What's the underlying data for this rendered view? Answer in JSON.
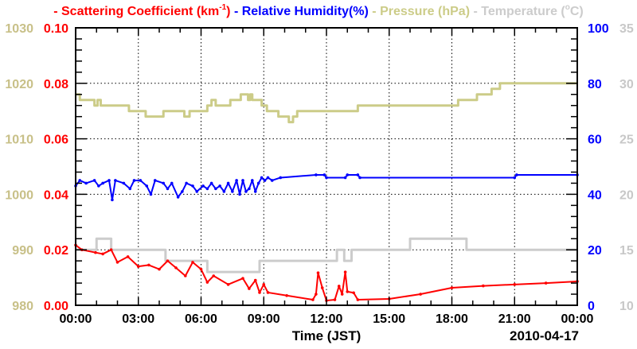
{
  "chart_data": {
    "type": "line",
    "title_parts": [
      {
        "dash": "-",
        "text": "Scattering Coefficient (km",
        "sup": "-1",
        "tail": ")",
        "color": "#ff0000"
      },
      {
        "dash": "-",
        "text": "Relative Humidity(%)",
        "color": "#0000ff"
      },
      {
        "dash": "-",
        "text": "Pressure (hPa)",
        "color": "#cccc88"
      },
      {
        "dash": "-",
        "text": "Temperature (",
        "sup": "o",
        "tail": "C)",
        "color": "#cccccc"
      }
    ],
    "xlabel": "Time (JST)",
    "date_label": "2010-04-17",
    "x_range_hours": [
      0,
      24
    ],
    "x_ticks": [
      "00:00",
      "03:00",
      "06:00",
      "09:00",
      "12:00",
      "15:00",
      "18:00",
      "21:00",
      "00:00"
    ],
    "grid": true,
    "axes": {
      "pressure": {
        "range": [
          980,
          1030
        ],
        "ticks": [
          "980",
          "990",
          "1000",
          "1010",
          "1020",
          "1030"
        ],
        "color": "#c8c088"
      },
      "scattering": {
        "range": [
          0,
          0.1
        ],
        "ticks": [
          "0.00",
          "0.02",
          "0.04",
          "0.06",
          "0.08",
          "0.10"
        ],
        "color": "#ff0000"
      },
      "humidity": {
        "range": [
          0,
          100
        ],
        "ticks": [
          "0",
          "20",
          "40",
          "60",
          "80",
          "100"
        ],
        "color": "#0000ff"
      },
      "temperature": {
        "range": [
          10,
          35
        ],
        "ticks": [
          "10",
          "15",
          "20",
          "25",
          "30",
          "35"
        ],
        "color": "#c8c8c8"
      }
    },
    "series": [
      {
        "name": "Pressure",
        "axis": "pressure",
        "color": "#cccc88",
        "step": true,
        "points": [
          [
            0,
            1018
          ],
          [
            0.2,
            1017
          ],
          [
            0.9,
            1016
          ],
          [
            1.05,
            1017
          ],
          [
            1.2,
            1016
          ],
          [
            2.55,
            1015
          ],
          [
            3.35,
            1014
          ],
          [
            4.2,
            1015
          ],
          [
            5.2,
            1014
          ],
          [
            5.45,
            1015
          ],
          [
            6.3,
            1016
          ],
          [
            6.5,
            1017
          ],
          [
            6.7,
            1016
          ],
          [
            7.4,
            1017
          ],
          [
            7.9,
            1018
          ],
          [
            8.25,
            1017
          ],
          [
            8.35,
            1018
          ],
          [
            8.45,
            1017
          ],
          [
            8.9,
            1016
          ],
          [
            9.15,
            1015
          ],
          [
            9.7,
            1014
          ],
          [
            10.2,
            1013
          ],
          [
            10.4,
            1014
          ],
          [
            10.6,
            1015
          ],
          [
            13.5,
            1016
          ],
          [
            18.3,
            1017
          ],
          [
            19.2,
            1018
          ],
          [
            19.9,
            1019
          ],
          [
            20.3,
            1020
          ],
          [
            24,
            1020
          ]
        ]
      },
      {
        "name": "Temperature",
        "axis": "temperature",
        "color": "#cccccc",
        "step": true,
        "points": [
          [
            0,
            15
          ],
          [
            1,
            16
          ],
          [
            1.7,
            15
          ],
          [
            4.3,
            14
          ],
          [
            6.3,
            13
          ],
          [
            8.8,
            14
          ],
          [
            12.5,
            15
          ],
          [
            12.85,
            14
          ],
          [
            13.2,
            15
          ],
          [
            16,
            16
          ],
          [
            18.7,
            15
          ],
          [
            24,
            15
          ]
        ]
      },
      {
        "name": "Relative Humidity",
        "axis": "humidity",
        "color": "#0000ff",
        "step": false,
        "points": [
          [
            0,
            43
          ],
          [
            0.2,
            45
          ],
          [
            0.5,
            44
          ],
          [
            0.9,
            45
          ],
          [
            1.1,
            43
          ],
          [
            1.3,
            44
          ],
          [
            1.6,
            45
          ],
          [
            1.75,
            38
          ],
          [
            1.9,
            45
          ],
          [
            2.3,
            44
          ],
          [
            2.6,
            42
          ],
          [
            2.8,
            45
          ],
          [
            3.1,
            45
          ],
          [
            3.4,
            43
          ],
          [
            3.6,
            40
          ],
          [
            3.8,
            45
          ],
          [
            4.2,
            44
          ],
          [
            4.4,
            42
          ],
          [
            4.6,
            44
          ],
          [
            4.9,
            39
          ],
          [
            5.1,
            41
          ],
          [
            5.3,
            44
          ],
          [
            5.6,
            43
          ],
          [
            5.8,
            41
          ],
          [
            6.1,
            43
          ],
          [
            6.3,
            42
          ],
          [
            6.5,
            44
          ],
          [
            6.7,
            42
          ],
          [
            6.9,
            43
          ],
          [
            7.1,
            41
          ],
          [
            7.3,
            44
          ],
          [
            7.5,
            41
          ],
          [
            7.7,
            45
          ],
          [
            7.85,
            40
          ],
          [
            8.0,
            45
          ],
          [
            8.15,
            41
          ],
          [
            8.3,
            42
          ],
          [
            8.45,
            45
          ],
          [
            8.6,
            41
          ],
          [
            8.75,
            44
          ],
          [
            8.9,
            46
          ],
          [
            9.05,
            45
          ],
          [
            9.2,
            46
          ],
          [
            9.4,
            45
          ],
          [
            9.8,
            46
          ],
          [
            11.5,
            47
          ],
          [
            11.9,
            47
          ],
          [
            12.0,
            46
          ],
          [
            12.9,
            46
          ],
          [
            13.0,
            47
          ],
          [
            13.5,
            47
          ],
          [
            13.6,
            46
          ],
          [
            21.0,
            46
          ],
          [
            21.1,
            47
          ],
          [
            24,
            47
          ]
        ]
      },
      {
        "name": "Scattering Coefficient",
        "axis": "scattering",
        "color": "#ff0000",
        "step": false,
        "points": [
          [
            0,
            0.0217
          ],
          [
            0.3,
            0.02
          ],
          [
            0.95,
            0.019
          ],
          [
            1.3,
            0.0185
          ],
          [
            1.7,
            0.02
          ],
          [
            2,
            0.0155
          ],
          [
            2.5,
            0.0175
          ],
          [
            3,
            0.014
          ],
          [
            3.5,
            0.0145
          ],
          [
            4,
            0.013
          ],
          [
            4.4,
            0.016
          ],
          [
            4.8,
            0.0135
          ],
          [
            5.25,
            0.0106
          ],
          [
            5.6,
            0.0155
          ],
          [
            6,
            0.013
          ],
          [
            6.3,
            0.0083
          ],
          [
            6.6,
            0.0106
          ],
          [
            7.3,
            0.0075
          ],
          [
            8,
            0.0097
          ],
          [
            8.3,
            0.006
          ],
          [
            8.6,
            0.009
          ],
          [
            8.8,
            0.0046
          ],
          [
            9,
            0.0075
          ],
          [
            9.2,
            0.0046
          ],
          [
            10.1,
            0.0035
          ],
          [
            11.35,
            0.002
          ],
          [
            11.5,
            0.004
          ],
          [
            11.6,
            0.0117
          ],
          [
            11.8,
            0.0063
          ],
          [
            12,
            0.0017
          ],
          [
            12.4,
            0.002
          ],
          [
            12.6,
            0.0069
          ],
          [
            12.75,
            0.004
          ],
          [
            12.9,
            0.012
          ],
          [
            13,
            0.0049
          ],
          [
            13.3,
            0.0045
          ],
          [
            13.5,
            0.002
          ],
          [
            15,
            0.0023
          ],
          [
            16.5,
            0.004
          ],
          [
            18,
            0.0063
          ],
          [
            19.5,
            0.007
          ],
          [
            21,
            0.0075
          ],
          [
            22.5,
            0.008
          ],
          [
            24,
            0.0086
          ]
        ]
      }
    ]
  }
}
